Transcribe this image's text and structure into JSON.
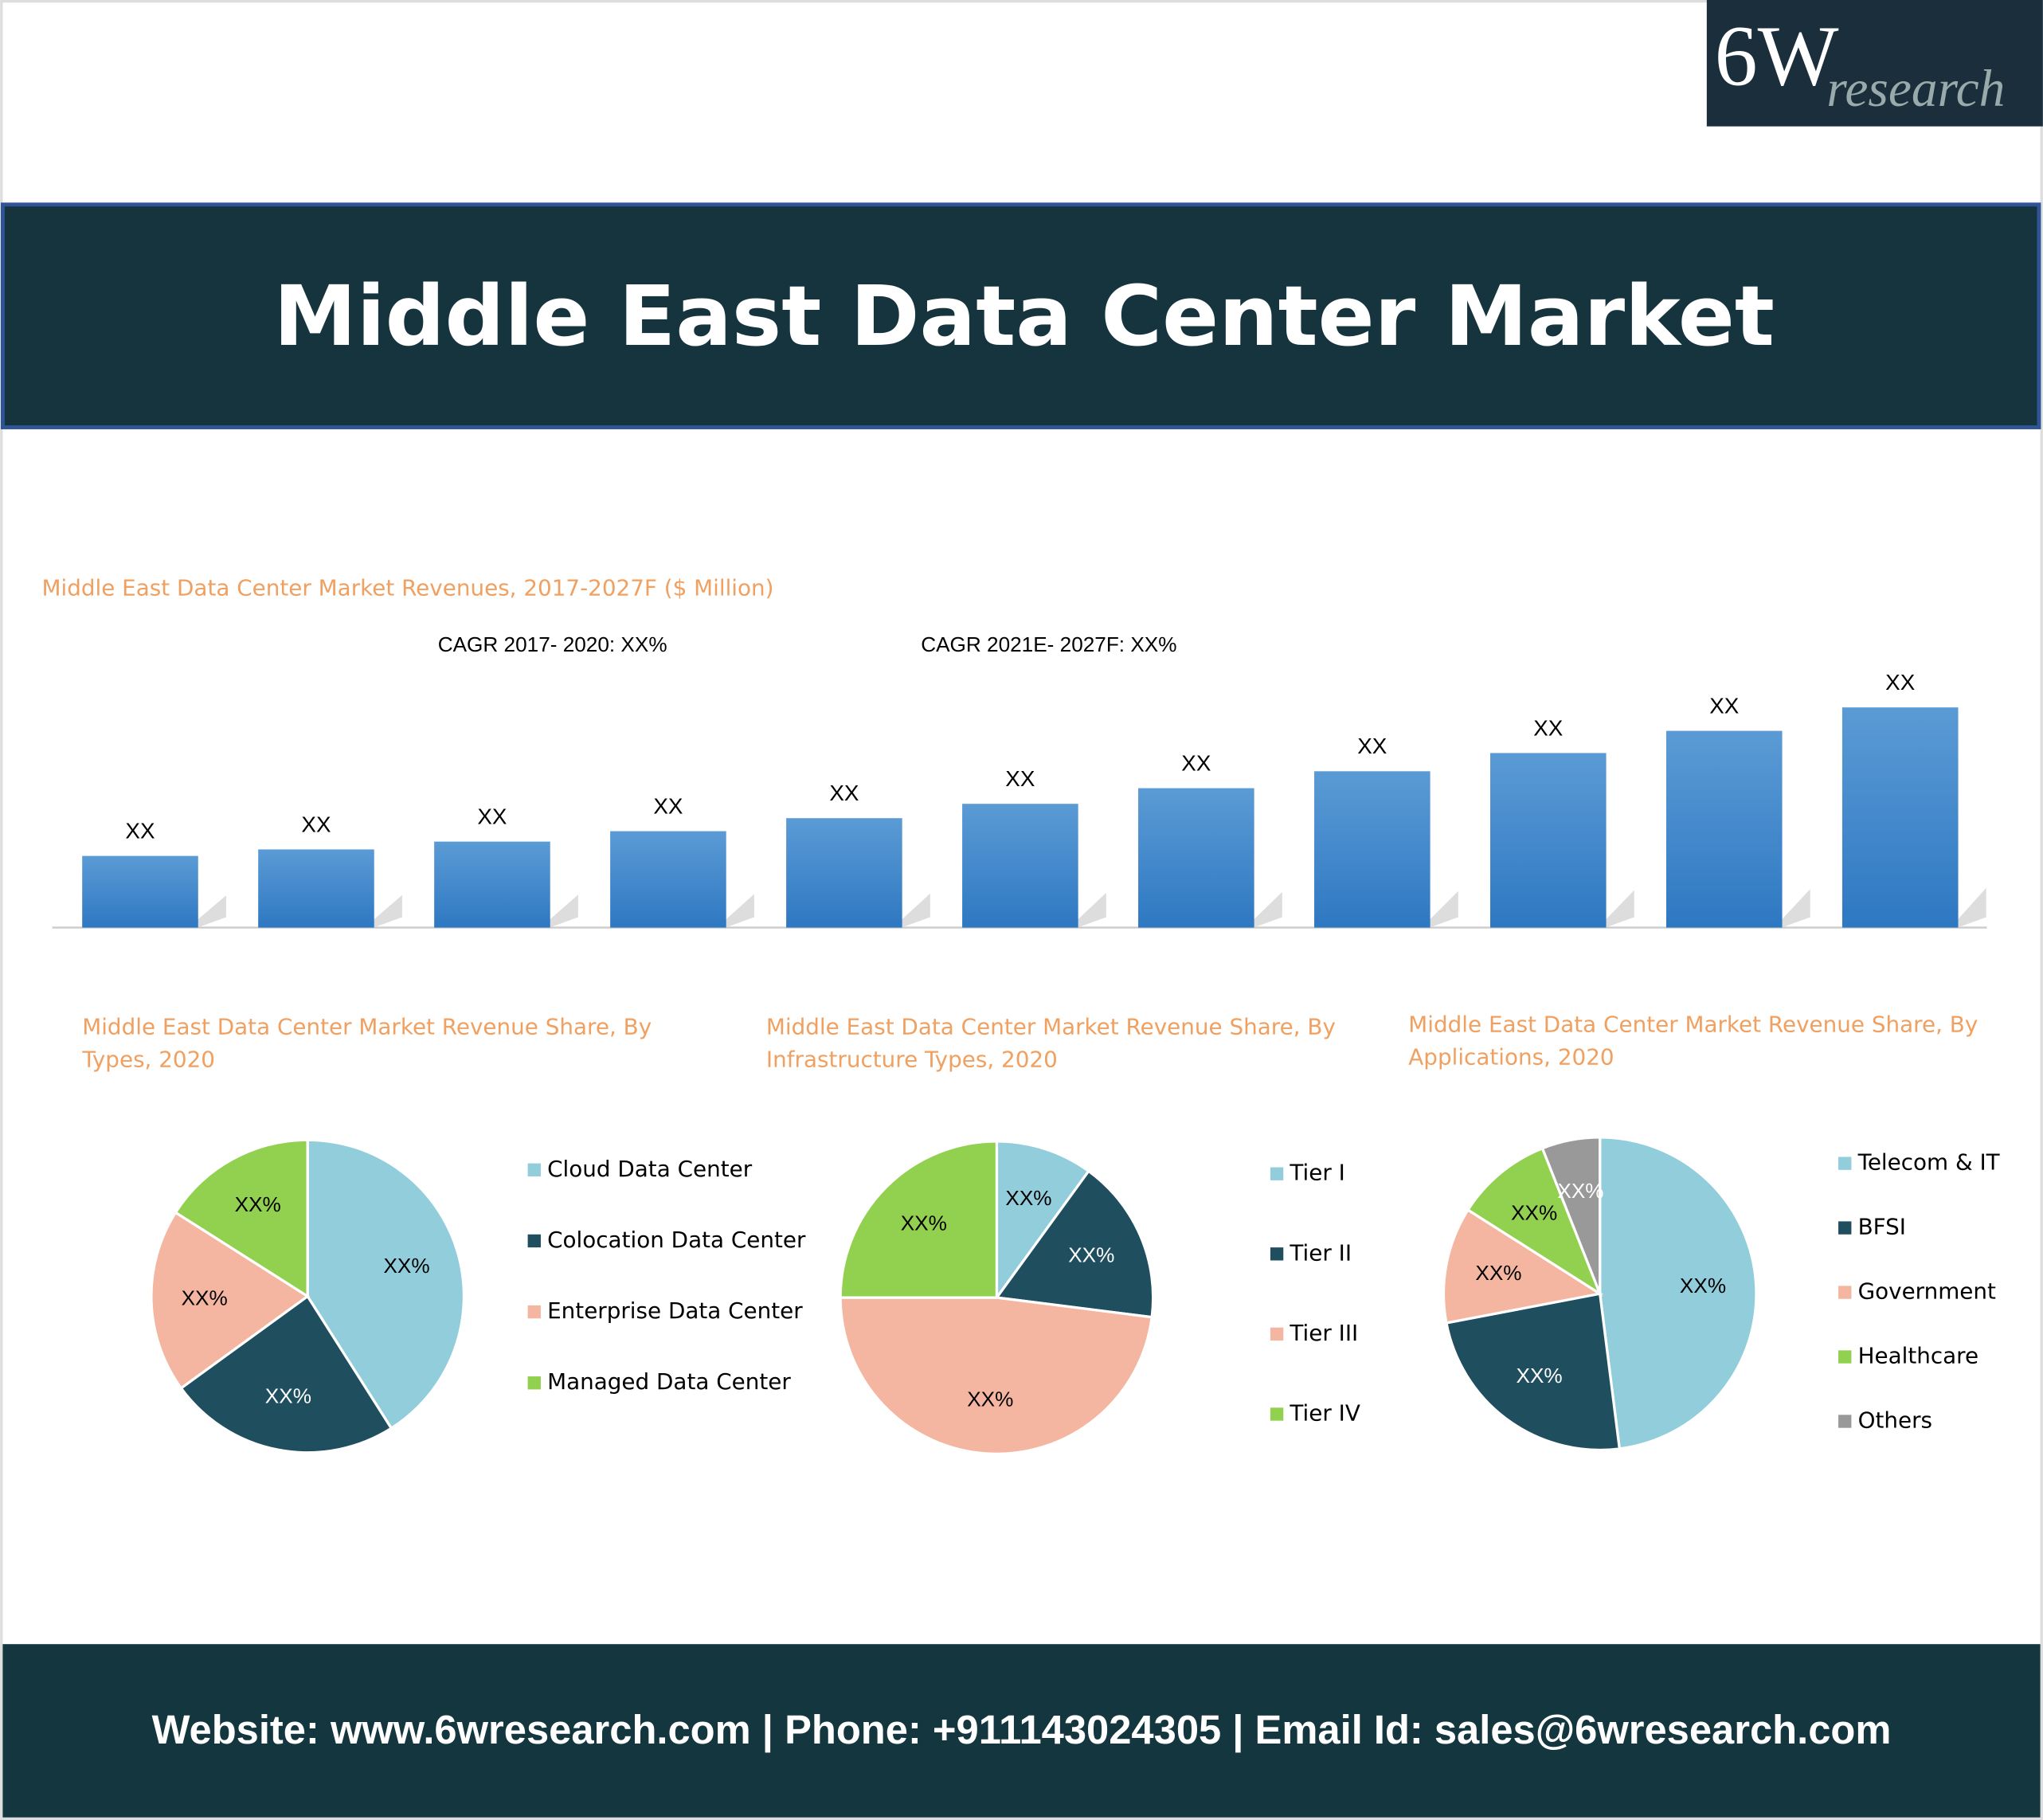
{
  "header": {
    "logo": "6W",
    "logo_sub": "research",
    "title": "Middle East Data Center Market"
  },
  "chart_data": [
    {
      "type": "bar",
      "title": "Middle East Data Center Market Revenues, 2017-2027F ($ Million)",
      "annotations": [
        "CAGR 2017- 2020: XX%",
        "CAGR 2021E- 2027F: XX%"
      ],
      "categories": [
        null,
        null,
        null,
        null,
        null,
        null,
        null,
        null,
        null,
        null,
        null
      ],
      "values": [
        55,
        60,
        66,
        74,
        84,
        95,
        107,
        120,
        134,
        151,
        169
      ],
      "value_labels": [
        "XX",
        "XX",
        "XX",
        "XX",
        "XX",
        "XX",
        "XX",
        "XX",
        "XX",
        "XX",
        "XX"
      ],
      "color": "#4a8fd4",
      "ylim": [
        0,
        180
      ]
    },
    {
      "type": "pie",
      "title": "Middle East Data Center Market Revenue Share, By Types, 2020",
      "categories": [
        "Cloud Data Center",
        "Colocation Data Center",
        "Enterprise Data Center",
        "Managed Data Center"
      ],
      "values": [
        41,
        24,
        19,
        16
      ],
      "value_labels": [
        "XX%",
        "XX%",
        "XX%",
        "XX%"
      ],
      "colors": [
        "#92cddc",
        "#1f4e5f",
        "#f4b6a0",
        "#92d050"
      ]
    },
    {
      "type": "pie",
      "title": "Middle East Data Center Market Revenue Share, By Infrastructure Types, 2020",
      "categories": [
        "Tier I",
        "Tier II",
        "Tier III",
        "Tier IV"
      ],
      "values": [
        10,
        17,
        48,
        25
      ],
      "value_labels": [
        "XX%",
        "XX%",
        "XX%",
        "XX%"
      ],
      "colors": [
        "#92cddc",
        "#1f4e5f",
        "#f4b6a0",
        "#92d050"
      ]
    },
    {
      "type": "pie",
      "title": "Middle East Data Center Market Revenue Share, By Applications, 2020",
      "categories": [
        "Telecom & IT",
        "BFSI",
        "Government",
        "Healthcare",
        "Others"
      ],
      "values": [
        48,
        24,
        12,
        10,
        6
      ],
      "value_labels": [
        "XX%",
        "XX%",
        "XX%",
        "XX%",
        "XX%"
      ],
      "colors": [
        "#92cddc",
        "#1f4e5f",
        "#f4b6a0",
        "#92d050",
        "#999999"
      ]
    }
  ],
  "footer": "Website: www.6wresearch.com | Phone: +911143024305 | Email Id: sales@6wresearch.com"
}
